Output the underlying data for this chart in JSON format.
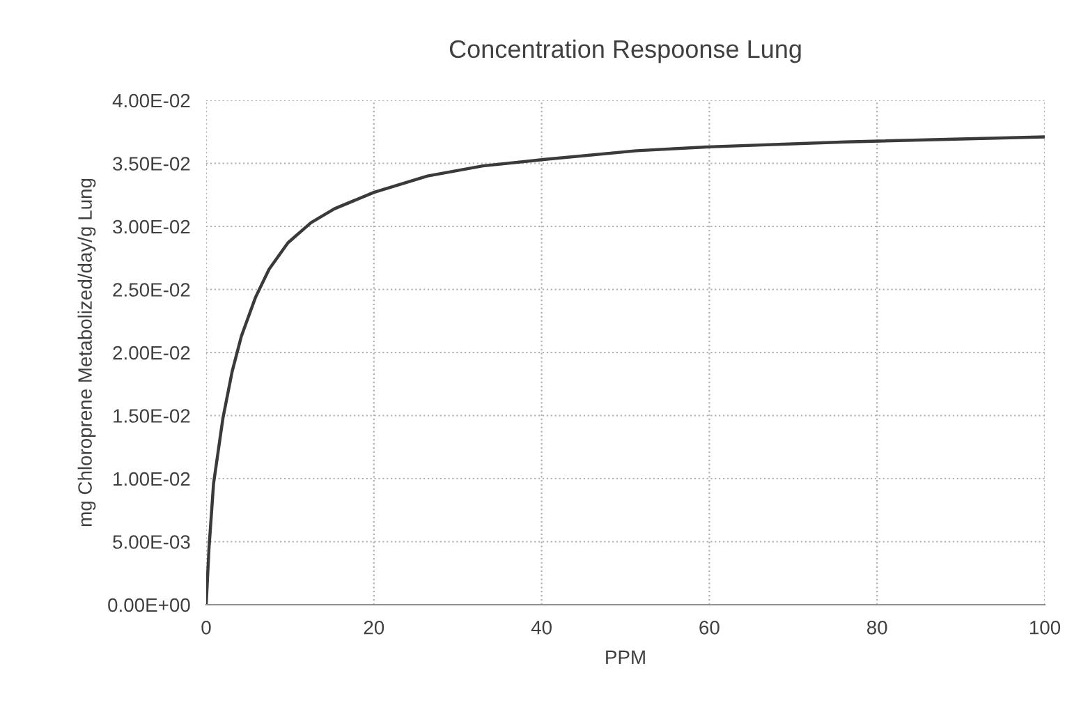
{
  "chart_data": {
    "type": "line",
    "title": "Concentration Respoonse Lung",
    "xlabel": "PPM",
    "ylabel": "mg Chloroprene Metabolized/day/g Lung",
    "series": [
      {
        "color": "#3a3a3a",
        "x": [
          0,
          0.33,
          0.88,
          2.0,
          3.1,
          4.2,
          5.9,
          7.5,
          9.75,
          12.5,
          15.3,
          20,
          26.4,
          33,
          40.2,
          51.3,
          59.6,
          76.2,
          100
        ],
        "values": [
          0,
          0.0044,
          0.0096,
          0.0148,
          0.0185,
          0.0213,
          0.0244,
          0.0266,
          0.0287,
          0.0303,
          0.0314,
          0.0327,
          0.034,
          0.0348,
          0.0353,
          0.036,
          0.0363,
          0.0367,
          0.0371
        ]
      }
    ],
    "xlim": [
      0,
      100
    ],
    "xticks": [
      0,
      20,
      40,
      60,
      80,
      100
    ],
    "ylim": [
      0,
      0.04
    ],
    "yticks": [
      {
        "value": 0,
        "label": "0.00E+00"
      },
      {
        "value": 0.005,
        "label": "5.00E-03"
      },
      {
        "value": 0.01,
        "label": "1.00E-02"
      },
      {
        "value": 0.015,
        "label": "1.50E-02"
      },
      {
        "value": 0.02,
        "label": "2.00E-02"
      },
      {
        "value": 0.025,
        "label": "2.50E-02"
      },
      {
        "value": 0.03,
        "label": "3.00E-02"
      },
      {
        "value": 0.035,
        "label": "3.50E-02"
      },
      {
        "value": 0.04,
        "label": "4.00E-02"
      }
    ],
    "grid": true,
    "marker": "none",
    "line_style": "solid"
  }
}
